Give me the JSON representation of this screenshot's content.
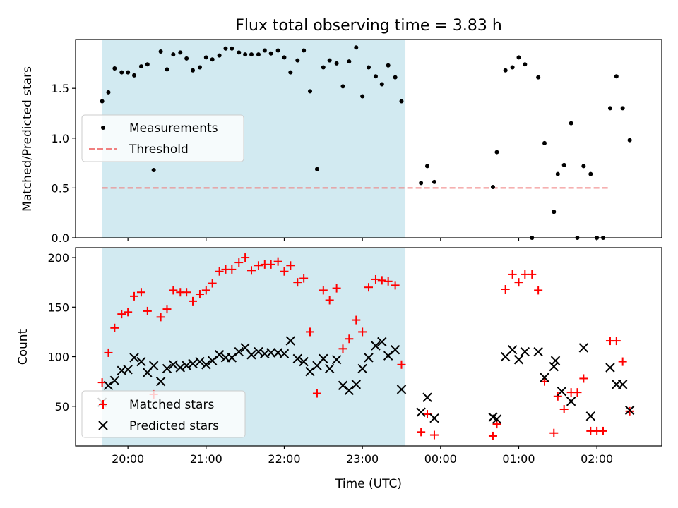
{
  "chart_data": [
    {
      "type": "scatter",
      "title": "Flux total observing time = 3.83 h",
      "xlabel": "",
      "ylabel": "Matched/Predicted stars",
      "x_unit": "hours UTC",
      "xlim": [
        19.33,
        26.83
      ],
      "ylim": [
        0.0,
        1.99
      ],
      "yticks": [
        0.0,
        0.5,
        1.0,
        1.5
      ],
      "ytick_labels": [
        "0.0",
        "0.5",
        "1.0",
        "1.5"
      ],
      "shaded_interval": [
        19.67,
        23.55
      ],
      "shaded_color": "#add8e6",
      "legend_position": "center-left",
      "threshold": {
        "name": "Threshold",
        "value": 0.5,
        "x_range": [
          19.67,
          26.17
        ],
        "color": "#f08080",
        "style": "dashed"
      },
      "series": [
        {
          "name": "Measurements",
          "color": "#000000",
          "marker": "dot",
          "points": [
            [
              19.67,
              1.37
            ],
            [
              19.75,
              1.46
            ],
            [
              19.83,
              1.7
            ],
            [
              19.92,
              1.66
            ],
            [
              20.0,
              1.66
            ],
            [
              20.08,
              1.63
            ],
            [
              20.17,
              1.72
            ],
            [
              20.25,
              1.74
            ],
            [
              20.33,
              0.68
            ],
            [
              20.42,
              1.87
            ],
            [
              20.5,
              1.69
            ],
            [
              20.58,
              1.84
            ],
            [
              20.67,
              1.86
            ],
            [
              20.75,
              1.8
            ],
            [
              20.83,
              1.68
            ],
            [
              20.92,
              1.71
            ],
            [
              21.0,
              1.81
            ],
            [
              21.08,
              1.79
            ],
            [
              21.17,
              1.83
            ],
            [
              21.25,
              1.9
            ],
            [
              21.33,
              1.9
            ],
            [
              21.42,
              1.86
            ],
            [
              21.5,
              1.84
            ],
            [
              21.58,
              1.84
            ],
            [
              21.67,
              1.84
            ],
            [
              21.75,
              1.88
            ],
            [
              21.83,
              1.85
            ],
            [
              21.92,
              1.88
            ],
            [
              22.0,
              1.81
            ],
            [
              22.08,
              1.66
            ],
            [
              22.17,
              1.78
            ],
            [
              22.25,
              1.88
            ],
            [
              22.33,
              1.47
            ],
            [
              22.42,
              0.69
            ],
            [
              22.5,
              1.71
            ],
            [
              22.58,
              1.78
            ],
            [
              22.67,
              1.75
            ],
            [
              22.75,
              1.52
            ],
            [
              22.83,
              1.77
            ],
            [
              22.92,
              1.91
            ],
            [
              23.0,
              1.42
            ],
            [
              23.08,
              1.71
            ],
            [
              23.17,
              1.62
            ],
            [
              23.25,
              1.54
            ],
            [
              23.33,
              1.73
            ],
            [
              23.42,
              1.61
            ],
            [
              23.5,
              1.37
            ],
            [
              23.75,
              0.55
            ],
            [
              23.83,
              0.72
            ],
            [
              23.92,
              0.56
            ],
            [
              24.67,
              0.51
            ],
            [
              24.72,
              0.86
            ],
            [
              24.83,
              1.68
            ],
            [
              24.92,
              1.71
            ],
            [
              25.0,
              1.81
            ],
            [
              25.08,
              1.74
            ],
            [
              25.17,
              0.0
            ],
            [
              25.25,
              1.61
            ],
            [
              25.33,
              0.95
            ],
            [
              25.45,
              0.26
            ],
            [
              25.5,
              0.64
            ],
            [
              25.58,
              0.73
            ],
            [
              25.67,
              1.15
            ],
            [
              25.75,
              0.0
            ],
            [
              25.83,
              0.72
            ],
            [
              25.92,
              0.64
            ],
            [
              26.0,
              0.0
            ],
            [
              26.08,
              0.0
            ],
            [
              26.17,
              1.3
            ],
            [
              26.25,
              1.62
            ],
            [
              26.33,
              1.3
            ],
            [
              26.42,
              0.98
            ]
          ]
        }
      ]
    },
    {
      "type": "scatter",
      "title": "",
      "xlabel": "Time (UTC)",
      "ylabel": "Count",
      "x_unit": "hours UTC",
      "xlim": [
        19.33,
        26.83
      ],
      "ylim": [
        10,
        210
      ],
      "yticks": [
        50,
        100,
        150,
        200
      ],
      "ytick_labels": [
        "50",
        "100",
        "150",
        "200"
      ],
      "xticks": [
        20,
        21,
        22,
        23,
        24,
        25,
        26
      ],
      "xtick_labels": [
        "20:00",
        "21:00",
        "22:00",
        "23:00",
        "00:00",
        "01:00",
        "02:00"
      ],
      "shaded_interval": [
        19.67,
        23.55
      ],
      "shaded_color": "#add8e6",
      "legend_position": "lower-left",
      "series": [
        {
          "name": "Matched stars",
          "color": "#ff0000",
          "marker": "plus",
          "points": [
            [
              19.67,
              74
            ],
            [
              19.75,
              104
            ],
            [
              19.83,
              129
            ],
            [
              19.92,
              143
            ],
            [
              20.0,
              145
            ],
            [
              20.08,
              161
            ],
            [
              20.17,
              165
            ],
            [
              20.25,
              146
            ],
            [
              20.33,
              62
            ],
            [
              20.42,
              140
            ],
            [
              20.5,
              148
            ],
            [
              20.58,
              167
            ],
            [
              20.67,
              165
            ],
            [
              20.75,
              165
            ],
            [
              20.83,
              156
            ],
            [
              20.92,
              163
            ],
            [
              21.0,
              167
            ],
            [
              21.08,
              174
            ],
            [
              21.17,
              186
            ],
            [
              21.25,
              188
            ],
            [
              21.33,
              188
            ],
            [
              21.42,
              195
            ],
            [
              21.5,
              200
            ],
            [
              21.58,
              187
            ],
            [
              21.67,
              192
            ],
            [
              21.75,
              193
            ],
            [
              21.83,
              193
            ],
            [
              21.92,
              196
            ],
            [
              22.0,
              186
            ],
            [
              22.08,
              192
            ],
            [
              22.17,
              175
            ],
            [
              22.25,
              179
            ],
            [
              22.33,
              125
            ],
            [
              22.42,
              63
            ],
            [
              22.5,
              167
            ],
            [
              22.58,
              157
            ],
            [
              22.67,
              169
            ],
            [
              22.75,
              108
            ],
            [
              22.83,
              118
            ],
            [
              22.92,
              137
            ],
            [
              23.0,
              125
            ],
            [
              23.08,
              170
            ],
            [
              23.17,
              178
            ],
            [
              23.25,
              177
            ],
            [
              23.33,
              176
            ],
            [
              23.42,
              172
            ],
            [
              23.5,
              92
            ],
            [
              23.75,
              24
            ],
            [
              23.83,
              42
            ],
            [
              23.92,
              21
            ],
            [
              24.67,
              20
            ],
            [
              24.72,
              32
            ],
            [
              24.83,
              168
            ],
            [
              24.92,
              183
            ],
            [
              25.0,
              175
            ],
            [
              25.08,
              183
            ],
            [
              25.17,
              183
            ],
            [
              25.25,
              167
            ],
            [
              25.33,
              75
            ],
            [
              25.45,
              23
            ],
            [
              25.5,
              60
            ],
            [
              25.58,
              47
            ],
            [
              25.67,
              64
            ],
            [
              25.75,
              64
            ],
            [
              25.83,
              78
            ],
            [
              25.92,
              25
            ],
            [
              26.0,
              25
            ],
            [
              26.08,
              25
            ],
            [
              26.17,
              116
            ],
            [
              26.25,
              116
            ],
            [
              26.33,
              95
            ],
            [
              26.42,
              45
            ]
          ]
        },
        {
          "name": "Predicted stars",
          "color": "#000000",
          "marker": "x",
          "points": [
            [
              19.67,
              54
            ],
            [
              19.75,
              71
            ],
            [
              19.83,
              76
            ],
            [
              19.92,
              86
            ],
            [
              20.0,
              87
            ],
            [
              20.08,
              99
            ],
            [
              20.17,
              95
            ],
            [
              20.25,
              84
            ],
            [
              20.33,
              91
            ],
            [
              20.42,
              75
            ],
            [
              20.5,
              88
            ],
            [
              20.58,
              92
            ],
            [
              20.67,
              89
            ],
            [
              20.75,
              91
            ],
            [
              20.83,
              93
            ],
            [
              20.92,
              95
            ],
            [
              21.0,
              92
            ],
            [
              21.08,
              96
            ],
            [
              21.17,
              102
            ],
            [
              21.25,
              99
            ],
            [
              21.33,
              99
            ],
            [
              21.42,
              105
            ],
            [
              21.5,
              109
            ],
            [
              21.58,
              102
            ],
            [
              21.67,
              105
            ],
            [
              21.75,
              103
            ],
            [
              21.83,
              104
            ],
            [
              21.92,
              104
            ],
            [
              22.0,
              103
            ],
            [
              22.08,
              116
            ],
            [
              22.17,
              98
            ],
            [
              22.25,
              95
            ],
            [
              22.33,
              85
            ],
            [
              22.42,
              91
            ],
            [
              22.5,
              98
            ],
            [
              22.58,
              88
            ],
            [
              22.67,
              97
            ],
            [
              22.75,
              71
            ],
            [
              22.83,
              66
            ],
            [
              22.92,
              72
            ],
            [
              23.0,
              88
            ],
            [
              23.08,
              99
            ],
            [
              23.17,
              111
            ],
            [
              23.25,
              115
            ],
            [
              23.33,
              101
            ],
            [
              23.42,
              107
            ],
            [
              23.5,
              67
            ],
            [
              23.75,
              44
            ],
            [
              23.83,
              59
            ],
            [
              23.92,
              38
            ],
            [
              24.67,
              39
            ],
            [
              24.72,
              37
            ],
            [
              24.83,
              100
            ],
            [
              24.92,
              107
            ],
            [
              25.0,
              97
            ],
            [
              25.08,
              105
            ],
            [
              25.25,
              105
            ],
            [
              25.33,
              79
            ],
            [
              25.45,
              90
            ],
            [
              25.47,
              96
            ],
            [
              25.55,
              65
            ],
            [
              25.67,
              55
            ],
            [
              25.83,
              109
            ],
            [
              25.92,
              40
            ],
            [
              26.17,
              89
            ],
            [
              26.25,
              72
            ],
            [
              26.33,
              72
            ],
            [
              26.42,
              46
            ]
          ]
        }
      ]
    }
  ]
}
